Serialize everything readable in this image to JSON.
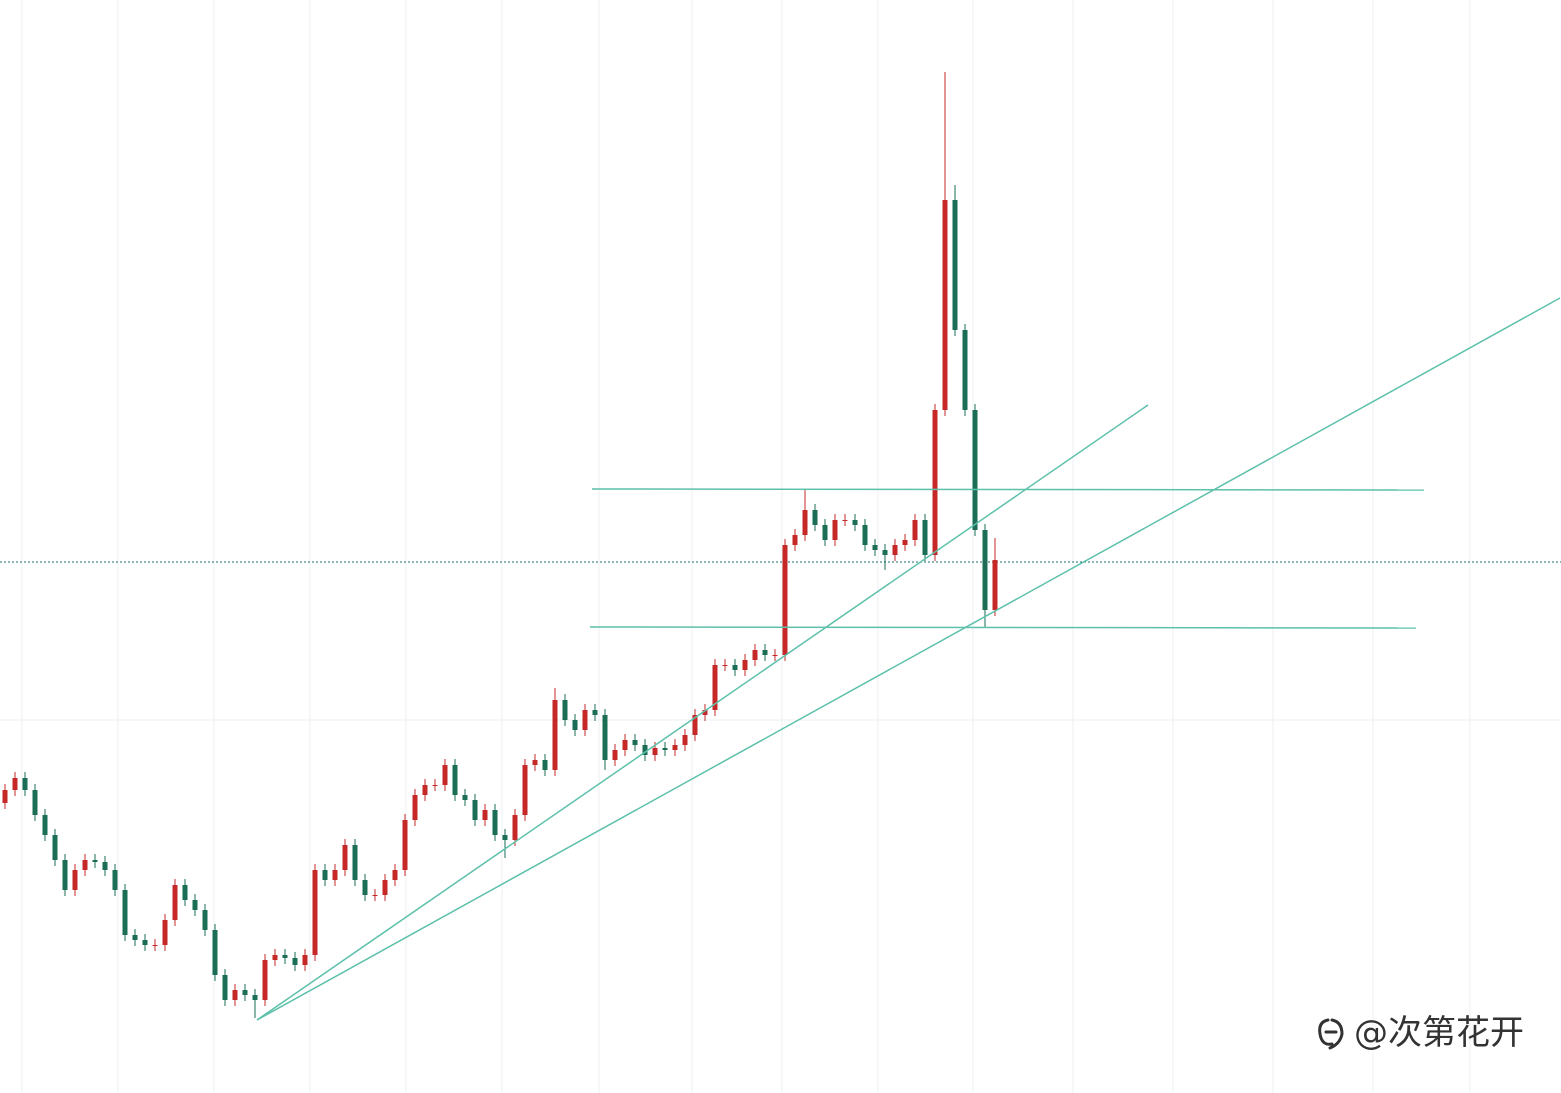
{
  "chart_data": {
    "type": "candlestick",
    "watermark": "@次第花开",
    "xlim": [
      -0.5,
      155.6
    ],
    "ylim": [
      0,
      1093
    ],
    "grid_x": [
      1.7,
      11.3,
      20.9,
      30.5,
      40.1,
      49.7,
      59.4,
      68.7,
      77.7,
      87.3,
      96.8,
      106.8,
      116.8,
      126.8,
      136.8,
      146.5
    ],
    "grid_y": [
      373
    ],
    "last_price_line": 531,
    "up_color": "#c62828",
    "down_color": "#1b6e55",
    "line_color": "#5cc0aa",
    "open": [
      290,
      303,
      315,
      303,
      278,
      258,
      233,
      203,
      223,
      233,
      231,
      223,
      203,
      158,
      153,
      148,
      148,
      173,
      208,
      193,
      183,
      163,
      118,
      93,
      103,
      98,
      93,
      133,
      138,
      135,
      128,
      138,
      223,
      213,
      223,
      248,
      213,
      198,
      198,
      213,
      223,
      273,
      298,
      308,
      308,
      328,
      298,
      293,
      273,
      283,
      258,
      253,
      278,
      328,
      333,
      323,
      393,
      373,
      363,
      383,
      378,
      333,
      343,
      353,
      348,
      338,
      345,
      343,
      348,
      358,
      378,
      383,
      428,
      428,
      423,
      433,
      443,
      438,
      438,
      548,
      558,
      583,
      568,
      553,
      573,
      573,
      568,
      548,
      543,
      538,
      548,
      553,
      573,
      538,
      683,
      893,
      763,
      683,
      563,
      483
    ],
    "high": [
      309,
      321,
      321,
      309,
      284,
      264,
      239,
      229,
      239,
      239,
      237,
      229,
      209,
      164,
      159,
      154,
      179,
      214,
      214,
      199,
      189,
      169,
      124,
      109,
      109,
      104,
      139,
      144,
      144,
      141,
      144,
      229,
      229,
      229,
      254,
      254,
      219,
      204,
      219,
      229,
      279,
      304,
      314,
      314,
      334,
      334,
      304,
      299,
      289,
      289,
      264,
      284,
      334,
      339,
      339,
      405,
      399,
      379,
      389,
      389,
      384,
      349,
      359,
      359,
      354,
      351,
      351,
      354,
      364,
      384,
      389,
      434,
      434,
      434,
      439,
      449,
      449,
      444,
      554,
      564,
      603,
      589,
      574,
      579,
      579,
      579,
      574,
      554,
      549,
      554,
      559,
      579,
      579,
      689,
      1021,
      908,
      769,
      689,
      569,
      555
    ],
    "low": [
      284,
      297,
      297,
      272,
      252,
      227,
      197,
      197,
      217,
      225,
      217,
      197,
      152,
      147,
      142,
      142,
      142,
      167,
      187,
      177,
      157,
      112,
      87,
      87,
      92,
      75,
      87,
      127,
      129,
      122,
      122,
      132,
      207,
      207,
      217,
      207,
      192,
      192,
      192,
      207,
      217,
      267,
      292,
      302,
      302,
      292,
      287,
      267,
      267,
      252,
      235,
      247,
      272,
      322,
      317,
      317,
      367,
      357,
      357,
      372,
      323,
      327,
      337,
      342,
      332,
      332,
      337,
      337,
      342,
      352,
      372,
      377,
      422,
      417,
      417,
      427,
      432,
      432,
      432,
      542,
      552,
      562,
      547,
      547,
      567,
      562,
      542,
      537,
      523,
      532,
      542,
      547,
      532,
      532,
      677,
      757,
      677,
      557,
      465,
      477
    ],
    "close": [
      303,
      315,
      303,
      278,
      258,
      233,
      203,
      223,
      233,
      231,
      223,
      203,
      158,
      153,
      148,
      148,
      173,
      208,
      193,
      183,
      163,
      118,
      93,
      103,
      98,
      93,
      133,
      138,
      135,
      128,
      138,
      223,
      213,
      223,
      248,
      213,
      198,
      198,
      213,
      223,
      273,
      298,
      308,
      308,
      328,
      298,
      293,
      273,
      283,
      258,
      253,
      278,
      328,
      333,
      323,
      393,
      373,
      363,
      383,
      378,
      333,
      343,
      353,
      348,
      338,
      345,
      343,
      348,
      358,
      378,
      383,
      428,
      428,
      423,
      433,
      443,
      438,
      438,
      548,
      558,
      583,
      568,
      553,
      573,
      573,
      568,
      548,
      543,
      538,
      548,
      553,
      573,
      538,
      683,
      893,
      763,
      683,
      563,
      483,
      533
    ],
    "lines": [
      {
        "x": [
          25.2,
          114.3
        ],
        "y": [
          73,
          688
        ]
      },
      {
        "x": [
          25.2,
          155.5
        ],
        "y": [
          73,
          795
        ]
      },
      {
        "x": [
          58.7,
          141.9
        ],
        "y": [
          604,
          603
        ]
      },
      {
        "x": [
          58.5,
          141.1
        ],
        "y": [
          466,
          465
        ]
      }
    ]
  }
}
